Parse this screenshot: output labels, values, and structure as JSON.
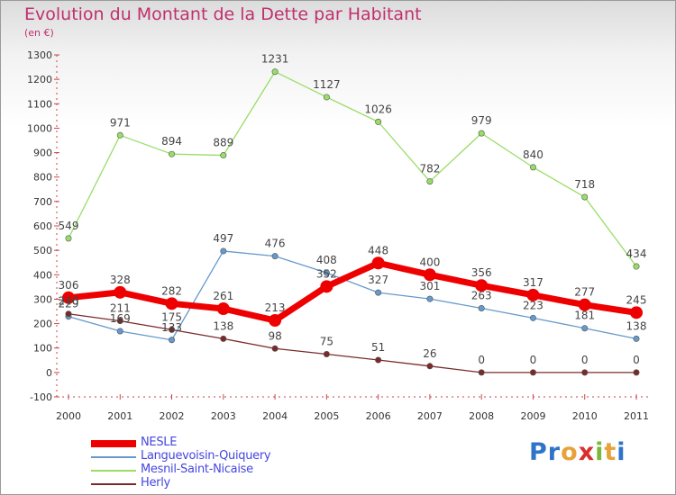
{
  "header": {
    "title": "Evolution du Montant de la Dette par Habitant",
    "subtitle": "(en €)"
  },
  "brand": {
    "logo_letters": [
      "P",
      "r",
      "o",
      "x",
      "i",
      "t",
      "i"
    ],
    "logo_colors": [
      "#2f74c8",
      "#2f74c8",
      "#e8a23a",
      "#d8302e",
      "#7ab83a",
      "#e8a23a",
      "#2f74c8"
    ]
  },
  "chart_data": {
    "type": "line",
    "title": "Evolution du Montant de la Dette par Habitant",
    "subtitle": "(en €)",
    "xlabel": "",
    "ylabel": "",
    "ylim": [
      -100,
      1300
    ],
    "yticks": [
      -100,
      0,
      100,
      200,
      300,
      400,
      500,
      600,
      700,
      800,
      900,
      1000,
      1100,
      1200,
      1300
    ],
    "categories": [
      "2000",
      "2001",
      "2002",
      "2003",
      "2004",
      "2005",
      "2006",
      "2007",
      "2008",
      "2009",
      "2010",
      "2011"
    ],
    "grid": false,
    "legend_position": "bottom-left",
    "series": [
      {
        "name": "NESLE",
        "color": "#ee0000",
        "values": [
          306,
          328,
          282,
          261,
          213,
          352,
          448,
          400,
          356,
          317,
          277,
          245
        ]
      },
      {
        "name": "Languevoisin-Quiquery",
        "color": "#6699cc",
        "values": [
          229,
          169,
          133,
          497,
          476,
          408,
          327,
          301,
          263,
          223,
          181,
          138
        ]
      },
      {
        "name": "Mesnil-Saint-Nicaise",
        "color": "#99dd66",
        "values": [
          549,
          971,
          894,
          889,
          1231,
          1127,
          1026,
          782,
          979,
          840,
          718,
          434
        ]
      },
      {
        "name": "Herly",
        "color": "#7a2a2a",
        "values": [
          240,
          211,
          175,
          138,
          98,
          75,
          51,
          26,
          0,
          0,
          0,
          0
        ]
      }
    ]
  }
}
